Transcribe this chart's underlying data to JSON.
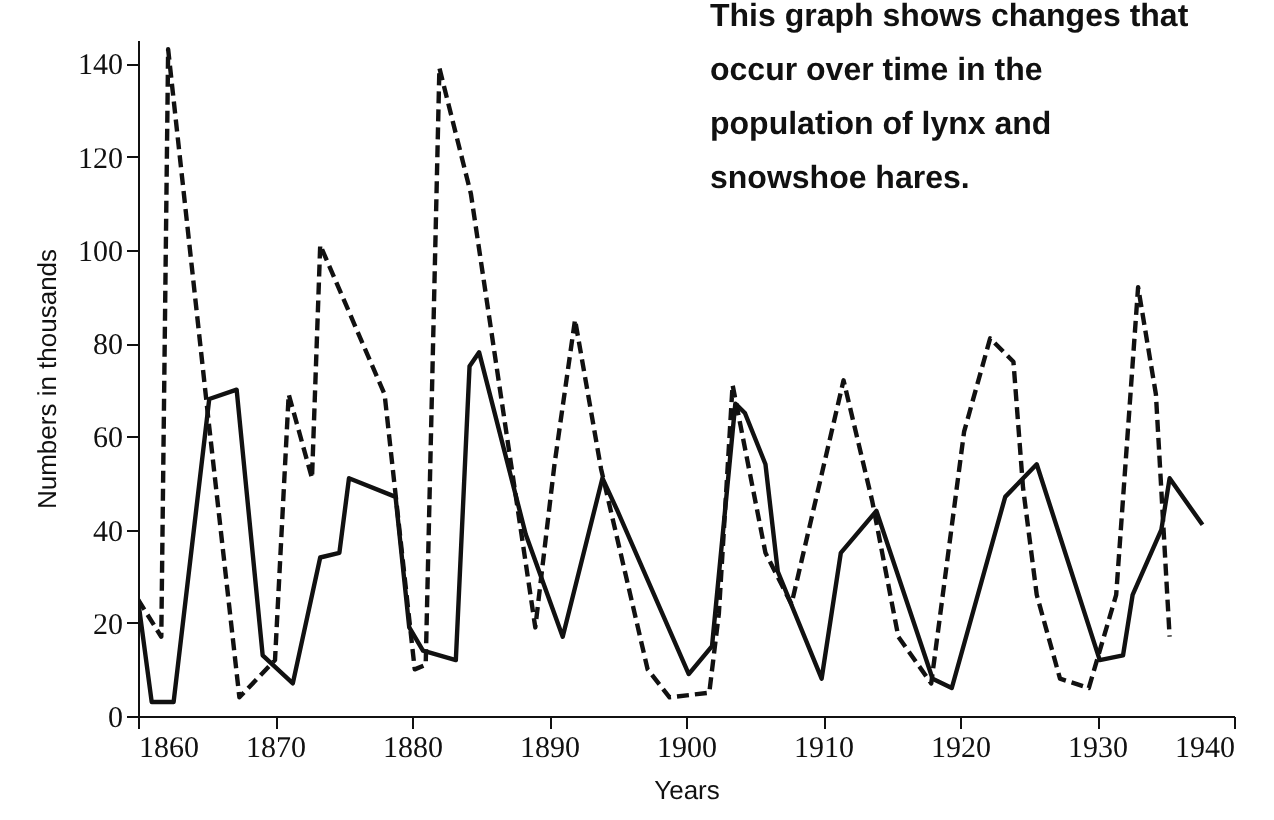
{
  "chart_data": {
    "type": "line",
    "xlabel": "Years",
    "ylabel": "Numbers in thousands",
    "annotations": [
      "This graph shows changes that occur over time in the population of lynx and snowshoe hares."
    ],
    "xlim": [
      1860,
      1940
    ],
    "xticks": [
      1860,
      1870,
      1880,
      1890,
      1900,
      1910,
      1920,
      1930,
      1940
    ],
    "ylim": [
      0,
      145
    ],
    "yticks": [
      0,
      20,
      40,
      60,
      80,
      100,
      120,
      140
    ],
    "grid": false,
    "marker": "none",
    "series": [
      {
        "color": "#111111",
        "line_style": "dashed",
        "x": [
          1860,
          1861.7,
          1862.2,
          1865.2,
          1867.4,
          1870,
          1871,
          1872.7,
          1873.3,
          1878,
          1880.2,
          1881,
          1882,
          1884.3,
          1889,
          1890.4,
          1891.9,
          1893.8,
          1897.2,
          1898.8,
          1901.7,
          1902.4,
          1903.4,
          1904,
          1905.8,
          1907.7,
          1911.5,
          1913.6,
          1915.5,
          1917.9,
          1920.3,
          1922.2,
          1923.9,
          1924.6,
          1925.6,
          1927.3,
          1929.4,
          1931.4,
          1933,
          1934.3,
          1935.3
        ],
        "values": [
          25,
          17,
          143,
          62,
          4,
          12,
          69,
          51,
          101,
          69,
          10,
          11,
          139,
          112,
          19,
          54,
          85,
          53,
          10,
          4,
          5,
          22,
          71,
          62,
          35,
          24,
          72,
          46,
          17,
          7,
          61,
          81,
          76,
          49,
          26,
          8,
          6,
          26,
          92,
          69,
          17
        ]
      },
      {
        "color": "#111111",
        "line_style": "solid",
        "x": [
          1860,
          1861,
          1862.6,
          1865.2,
          1867.2,
          1869.1,
          1871.3,
          1873.3,
          1874.7,
          1875.4,
          1878.8,
          1879.8,
          1880.8,
          1883.2,
          1884.2,
          1884.9,
          1888.3,
          1891,
          1893.9,
          1895,
          1900.2,
          1901.9,
          1903.6,
          1904.3,
          1905.8,
          1906.7,
          1909.9,
          1911.3,
          1913.9,
          1918,
          1919.4,
          1923.3,
          1925.6,
          1930.2,
          1931.9,
          1932.6,
          1934.7,
          1935.3,
          1937.7
        ],
        "values": [
          25,
          3,
          3,
          68,
          70,
          13,
          7,
          34,
          35,
          51,
          47,
          19,
          14,
          12,
          75,
          78,
          39,
          17,
          51,
          44,
          9,
          15,
          67,
          65,
          54,
          31,
          8,
          35,
          44,
          8,
          6,
          47,
          54,
          12,
          13,
          26,
          40,
          51,
          41
        ]
      }
    ]
  }
}
